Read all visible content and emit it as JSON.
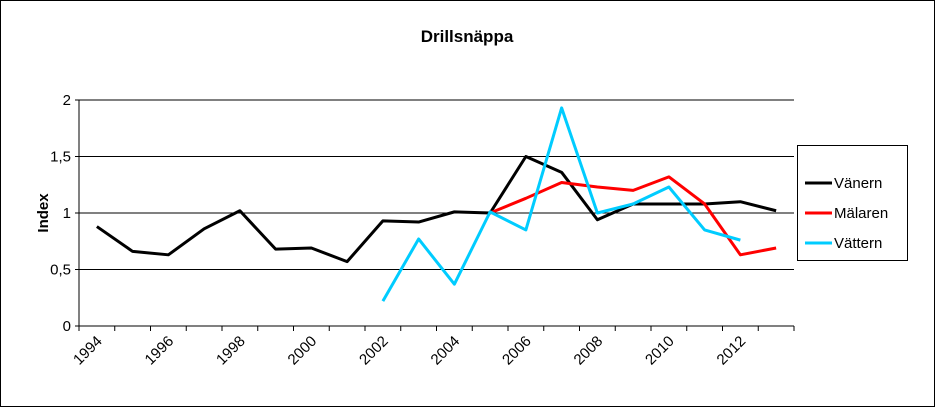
{
  "chart_data": {
    "type": "line",
    "title": "Drillsnäppa",
    "y_label": "Index",
    "categories": [
      "1994",
      null,
      "1996",
      null,
      "1998",
      null,
      "2000",
      null,
      "2002",
      null,
      "2004",
      null,
      "2006",
      null,
      "2008",
      null,
      "2010",
      null,
      "2012",
      null
    ],
    "series": [
      {
        "name": "Vänern",
        "color": "#000000",
        "values": [
          0.88,
          0.66,
          0.63,
          0.86,
          1.02,
          0.68,
          0.69,
          0.57,
          0.93,
          0.92,
          1.01,
          1.0,
          1.5,
          1.36,
          0.94,
          1.08,
          1.08,
          1.08,
          1.1,
          1.02
        ]
      },
      {
        "name": "Mälaren",
        "color": "#ff0000",
        "values": [
          null,
          null,
          null,
          null,
          null,
          null,
          null,
          null,
          null,
          null,
          null,
          1.0,
          1.13,
          1.27,
          1.23,
          1.2,
          1.32,
          1.08,
          0.63,
          0.69
        ]
      },
      {
        "name": "Vättern",
        "color": "#00ccff",
        "values": [
          null,
          null,
          null,
          null,
          null,
          null,
          null,
          null,
          0.22,
          0.77,
          0.37,
          1.01,
          0.85,
          1.93,
          1.0,
          1.08,
          1.23,
          0.85,
          0.76,
          null
        ]
      }
    ],
    "ylim": [
      0,
      2
    ],
    "yticks": [
      0,
      {
        "value": 0.5,
        "label": "0,5"
      },
      1,
      {
        "value": 1.5,
        "label": "1,5"
      },
      2
    ],
    "grid": true,
    "legend": "right"
  }
}
